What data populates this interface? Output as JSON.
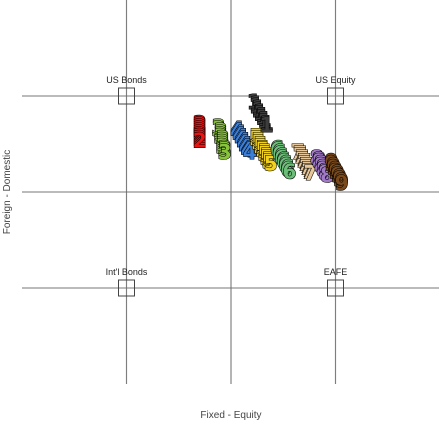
{
  "chart_data": {
    "type": "scatter",
    "title": "",
    "xlabel": "Fixed - Equity",
    "ylabel": "Foreign - Domestic",
    "xlim": [
      -1.0,
      1.0
    ],
    "ylim": [
      -1.0,
      1.0
    ],
    "grid": true,
    "legend": "none",
    "corners": [
      {
        "label": "US Bonds",
        "x": -0.5,
        "y": 0.5
      },
      {
        "label": "US Equity",
        "x": 0.5,
        "y": 0.5
      },
      {
        "label": "Int'l Bonds",
        "x": -0.5,
        "y": -0.5
      },
      {
        "label": "EAFE",
        "x": 0.5,
        "y": -0.5
      }
    ],
    "series": [
      {
        "label": "1",
        "color": "#3d3d3d",
        "points": [
          [
            0.11,
            0.46
          ],
          [
            0.12,
            0.45
          ],
          [
            0.12,
            0.44
          ],
          [
            0.13,
            0.43
          ],
          [
            0.13,
            0.42
          ],
          [
            0.14,
            0.41
          ],
          [
            0.14,
            0.4
          ],
          [
            0.15,
            0.39
          ],
          [
            0.15,
            0.38
          ],
          [
            0.16,
            0.37
          ],
          [
            0.16,
            0.36
          ],
          [
            0.17,
            0.35
          ],
          [
            0.17,
            0.34
          ]
        ]
      },
      {
        "label": "2",
        "color": "#ee1111",
        "points": [
          [
            -0.15,
            0.35
          ],
          [
            -0.15,
            0.34
          ],
          [
            -0.15,
            0.33
          ],
          [
            -0.15,
            0.32
          ],
          [
            -0.15,
            0.31
          ],
          [
            -0.15,
            0.3
          ],
          [
            -0.15,
            0.29
          ],
          [
            -0.15,
            0.28
          ],
          [
            -0.15,
            0.27
          ],
          [
            -0.15,
            0.26
          ]
        ]
      },
      {
        "label": "3",
        "color": "#88c43a",
        "points": [
          [
            -0.06,
            0.33
          ],
          [
            -0.06,
            0.32
          ],
          [
            -0.05,
            0.31
          ],
          [
            -0.05,
            0.3
          ],
          [
            -0.05,
            0.29
          ],
          [
            -0.05,
            0.28
          ],
          [
            -0.04,
            0.27
          ],
          [
            -0.04,
            0.26
          ],
          [
            -0.04,
            0.25
          ],
          [
            -0.04,
            0.24
          ],
          [
            -0.04,
            0.23
          ],
          [
            -0.03,
            0.22
          ],
          [
            -0.03,
            0.21
          ],
          [
            -0.03,
            0.2
          ]
        ]
      },
      {
        "label": "4",
        "color": "#3b7fd8",
        "points": [
          [
            0.03,
            0.32
          ],
          [
            0.03,
            0.31
          ],
          [
            0.04,
            0.3
          ],
          [
            0.04,
            0.29
          ],
          [
            0.05,
            0.28
          ],
          [
            0.05,
            0.27
          ],
          [
            0.06,
            0.26
          ],
          [
            0.06,
            0.25
          ],
          [
            0.07,
            0.24
          ],
          [
            0.07,
            0.23
          ],
          [
            0.08,
            0.22
          ],
          [
            0.08,
            0.21
          ],
          [
            0.09,
            0.2
          ]
        ]
      },
      {
        "label": "5",
        "color": "#f2d21e",
        "points": [
          [
            0.12,
            0.28
          ],
          [
            0.12,
            0.27
          ],
          [
            0.13,
            0.26
          ],
          [
            0.13,
            0.25
          ],
          [
            0.14,
            0.24
          ],
          [
            0.14,
            0.23
          ],
          [
            0.15,
            0.22
          ],
          [
            0.15,
            0.21
          ],
          [
            0.16,
            0.2
          ],
          [
            0.16,
            0.19
          ],
          [
            0.17,
            0.18
          ],
          [
            0.17,
            0.17
          ],
          [
            0.18,
            0.16
          ],
          [
            0.18,
            0.15
          ],
          [
            0.19,
            0.14
          ]
        ]
      },
      {
        "label": "6",
        "color": "#6bbd78",
        "points": [
          [
            0.22,
            0.22
          ],
          [
            0.22,
            0.21
          ],
          [
            0.23,
            0.2
          ],
          [
            0.23,
            0.19
          ],
          [
            0.24,
            0.18
          ],
          [
            0.24,
            0.17
          ],
          [
            0.25,
            0.16
          ],
          [
            0.25,
            0.15
          ],
          [
            0.26,
            0.14
          ],
          [
            0.26,
            0.13
          ],
          [
            0.27,
            0.12
          ],
          [
            0.27,
            0.11
          ],
          [
            0.28,
            0.1
          ]
        ]
      },
      {
        "label": "7",
        "color": "#e7c79a",
        "points": [
          [
            0.32,
            0.2
          ],
          [
            0.33,
            0.19
          ],
          [
            0.33,
            0.18
          ],
          [
            0.34,
            0.17
          ],
          [
            0.34,
            0.16
          ],
          [
            0.35,
            0.15
          ],
          [
            0.35,
            0.14
          ],
          [
            0.36,
            0.13
          ],
          [
            0.36,
            0.12
          ],
          [
            0.37,
            0.11
          ],
          [
            0.37,
            0.1
          ],
          [
            0.38,
            0.09
          ]
        ]
      },
      {
        "label": "8",
        "color": "#a27bc8",
        "points": [
          [
            0.41,
            0.17
          ],
          [
            0.42,
            0.16
          ],
          [
            0.42,
            0.15
          ],
          [
            0.43,
            0.14
          ],
          [
            0.43,
            0.13
          ],
          [
            0.44,
            0.12
          ],
          [
            0.44,
            0.11
          ],
          [
            0.45,
            0.1
          ],
          [
            0.45,
            0.09
          ],
          [
            0.46,
            0.08
          ]
        ]
      },
      {
        "label": "9",
        "color": "#7a4a1c",
        "points": [
          [
            0.48,
            0.15
          ],
          [
            0.48,
            0.14
          ],
          [
            0.49,
            0.13
          ],
          [
            0.49,
            0.12
          ],
          [
            0.5,
            0.11
          ],
          [
            0.5,
            0.1
          ],
          [
            0.51,
            0.09
          ],
          [
            0.51,
            0.08
          ],
          [
            0.52,
            0.07
          ],
          [
            0.52,
            0.06
          ],
          [
            0.53,
            0.05
          ],
          [
            0.53,
            0.04
          ]
        ]
      }
    ]
  }
}
